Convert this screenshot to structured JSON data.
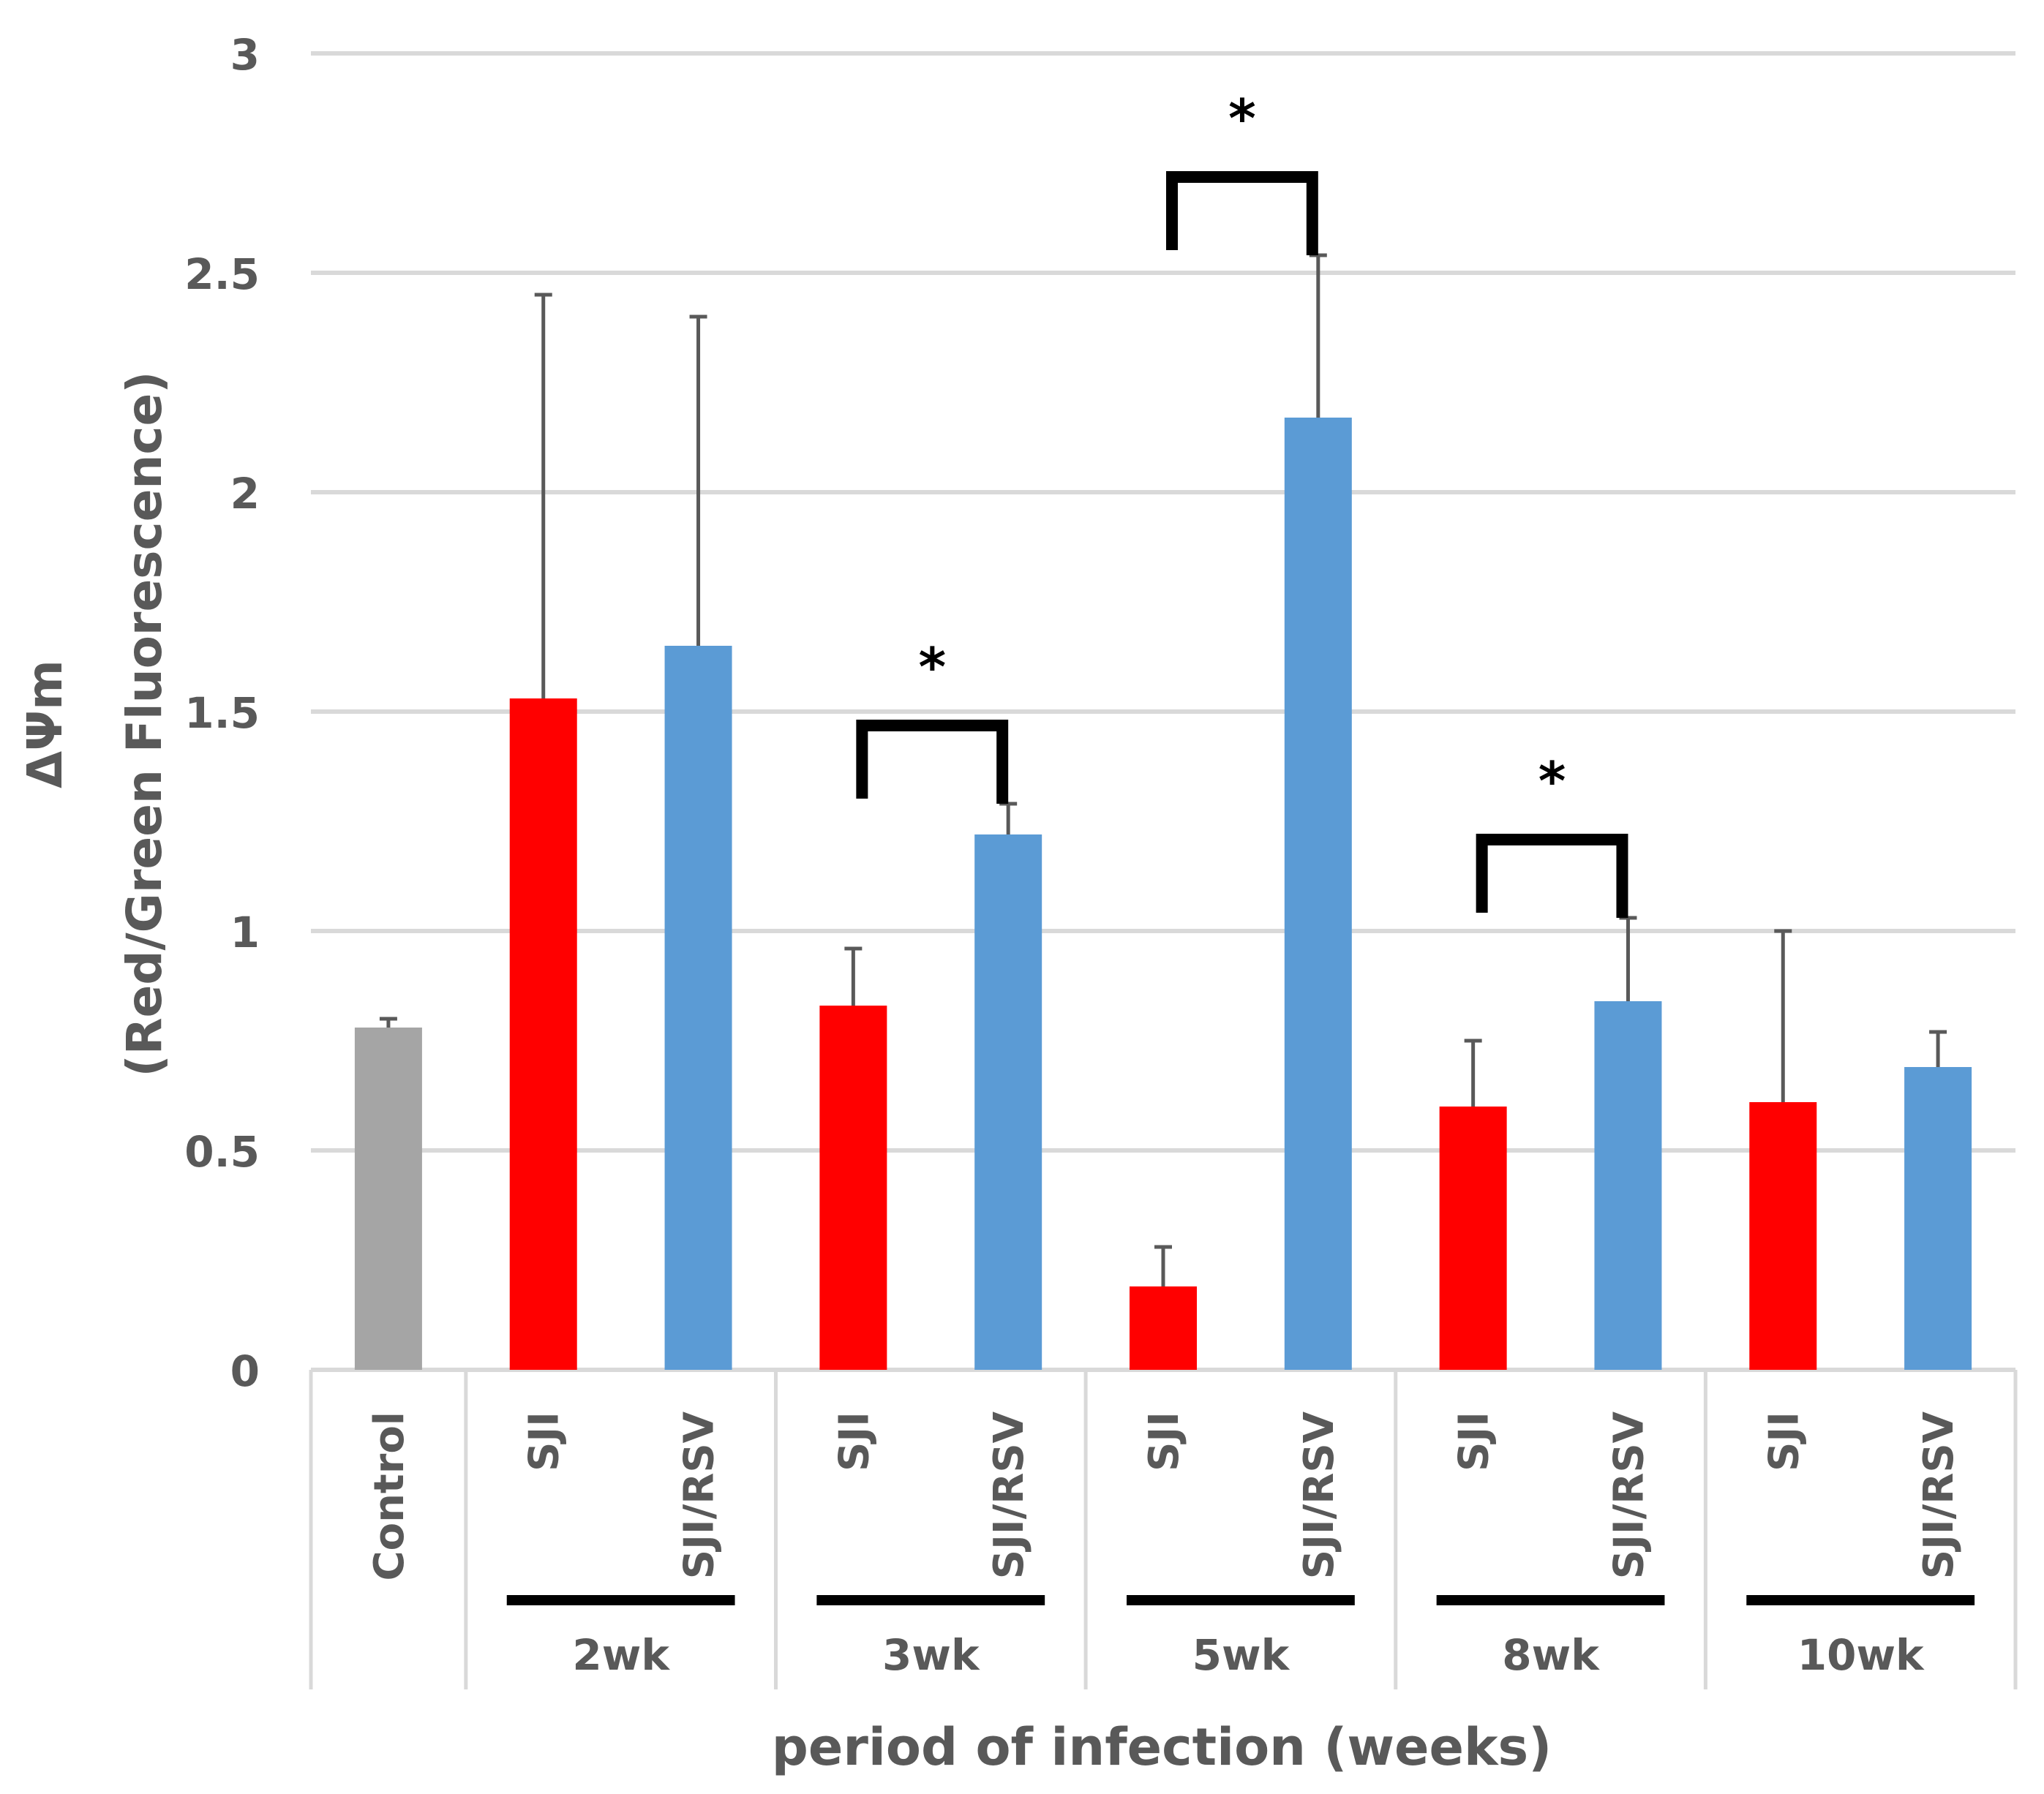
{
  "chart_data": {
    "type": "bar",
    "title": "",
    "ylabel_line1": "ΔΨm",
    "ylabel_line2": "(Red/Green Fluorescence)",
    "xlabel": "period of infection (weeks)",
    "ylim": [
      0,
      3
    ],
    "yticks": [
      "0",
      "0.5",
      "1",
      "1.5",
      "2",
      "2.5",
      "3"
    ],
    "ytick_values": [
      0,
      0.5,
      1,
      1.5,
      2,
      2.5,
      3
    ],
    "grid": true,
    "bars": [
      {
        "label": "Control",
        "group": "",
        "value": 0.78,
        "error": 0.02,
        "color": "#a5a5a5"
      },
      {
        "label": "SJI",
        "group": "2wk",
        "value": 1.53,
        "error": 0.92,
        "color": "#ff0000"
      },
      {
        "label": "SJI/RSV",
        "group": "2wk",
        "value": 1.65,
        "error": 0.75,
        "color": "#5b9bd5"
      },
      {
        "label": "SJI",
        "group": "3wk",
        "value": 0.83,
        "error": 0.13,
        "color": "#ff0000"
      },
      {
        "label": "SJI/RSV",
        "group": "3wk",
        "value": 1.22,
        "error": 0.07,
        "color": "#5b9bd5"
      },
      {
        "label": "SJI",
        "group": "5wk",
        "value": 0.19,
        "error": 0.09,
        "color": "#ff0000"
      },
      {
        "label": "SJI/RSV",
        "group": "5wk",
        "value": 2.17,
        "error": 0.37,
        "color": "#5b9bd5"
      },
      {
        "label": "SJI",
        "group": "8wk",
        "value": 0.6,
        "error": 0.15,
        "color": "#ff0000"
      },
      {
        "label": "SJI/RSV",
        "group": "8wk",
        "value": 0.84,
        "error": 0.19,
        "color": "#5b9bd5"
      },
      {
        "label": "SJI",
        "group": "10wk",
        "value": 0.61,
        "error": 0.39,
        "color": "#ff0000"
      },
      {
        "label": "SJI/RSV",
        "group": "10wk",
        "value": 0.69,
        "error": 0.08,
        "color": "#5b9bd5"
      }
    ],
    "groups": [
      "2wk",
      "3wk",
      "5wk",
      "8wk",
      "10wk"
    ],
    "significance": [
      {
        "group": "3wk",
        "label": "*"
      },
      {
        "group": "5wk",
        "label": "*"
      },
      {
        "group": "8wk",
        "label": "*"
      }
    ]
  }
}
